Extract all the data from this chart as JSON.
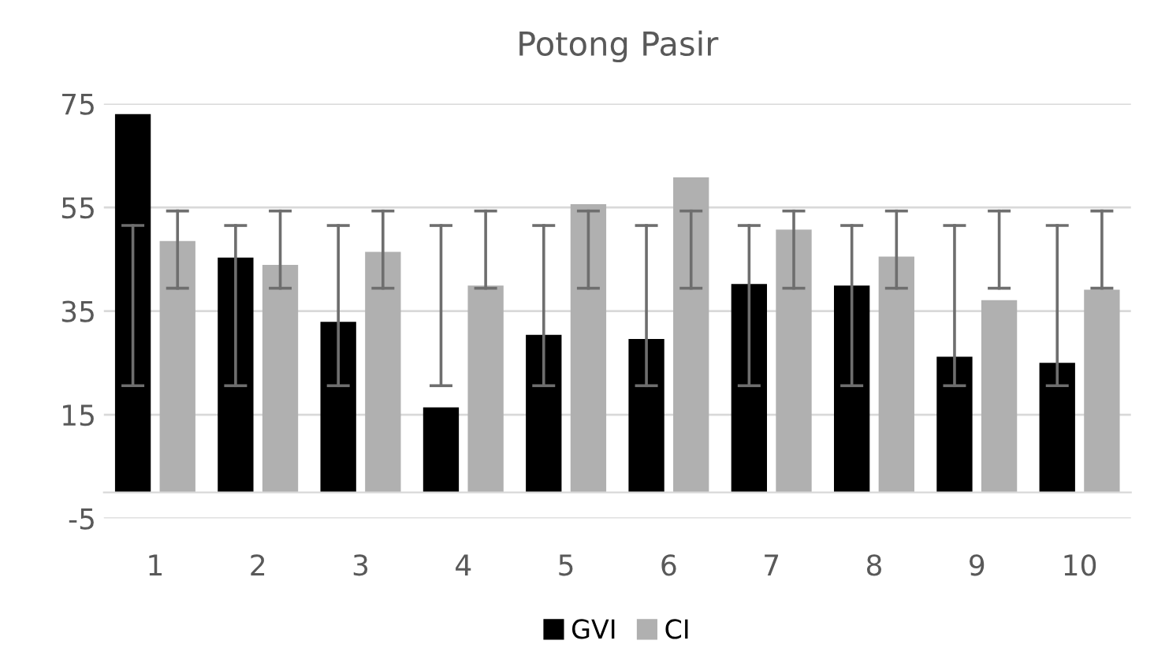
{
  "chart_data": {
    "type": "bar",
    "title": "Potong Pasir",
    "categories": [
      "1",
      "2",
      "3",
      "4",
      "5",
      "6",
      "7",
      "8",
      "9",
      "10"
    ],
    "series": [
      {
        "name": "GVI",
        "color": "#000000",
        "values": [
          73,
          45.3,
          32.9,
          16.4,
          30.4,
          29.6,
          40.2,
          39.9,
          26.2,
          25.0
        ],
        "errors": [
          [
            20.6,
            51.5
          ],
          [
            20.6,
            51.5
          ],
          [
            20.6,
            51.5
          ],
          [
            20.6,
            51.5
          ],
          [
            20.6,
            51.5
          ],
          [
            20.6,
            51.5
          ],
          [
            20.6,
            51.5
          ],
          [
            20.6,
            51.5
          ],
          [
            20.6,
            51.5
          ],
          [
            20.6,
            51.5
          ]
        ]
      },
      {
        "name": "CI",
        "color": "#b0b0b0",
        "values": [
          48.5,
          43.9,
          46.4,
          39.9,
          55.6,
          60.8,
          50.7,
          45.5,
          37.1,
          39.1
        ],
        "errors": [
          [
            39.4,
            54.3
          ],
          [
            39.4,
            54.3
          ],
          [
            39.4,
            54.3
          ],
          [
            39.4,
            54.3
          ],
          [
            39.4,
            54.3
          ],
          [
            39.4,
            54.3
          ],
          [
            39.4,
            54.3
          ],
          [
            39.4,
            54.3
          ],
          [
            39.4,
            54.3
          ],
          [
            39.4,
            54.3
          ]
        ]
      }
    ],
    "ylim": [
      -5,
      75
    ],
    "yticks": [
      -5,
      15,
      35,
      55,
      75
    ],
    "grid": "y",
    "legend": "bottom"
  }
}
